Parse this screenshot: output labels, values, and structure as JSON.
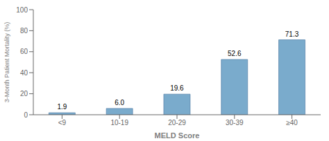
{
  "chart_data": {
    "type": "bar",
    "categories": [
      "<9",
      "10-19",
      "20-29",
      "30-39",
      "≥40"
    ],
    "values": [
      1.9,
      6.0,
      19.6,
      52.6,
      71.3
    ],
    "value_labels": [
      "1.9",
      "6.0",
      "19.6",
      "52.6",
      "71.3"
    ],
    "data_labels": true,
    "color": "#7aabcc",
    "xlabel": "MELD Score",
    "ylabel": "3-Month Patient Mortality (%)",
    "ylim": [
      0,
      100
    ],
    "yticks": [
      0,
      20,
      40,
      60,
      80,
      100
    ],
    "grid": false
  }
}
